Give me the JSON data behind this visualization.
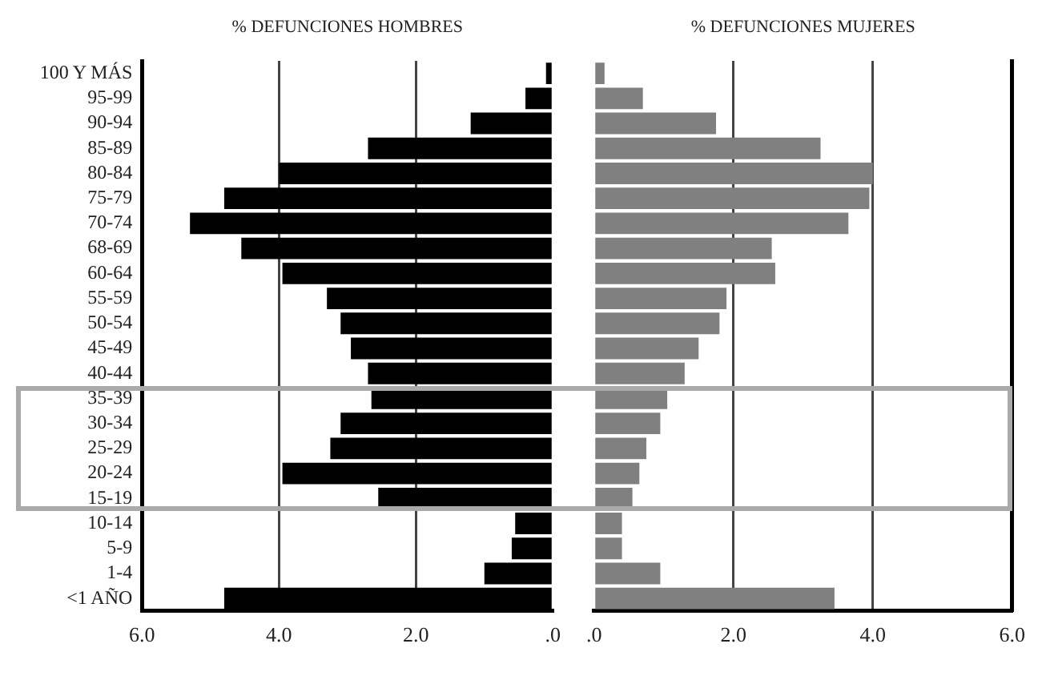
{
  "chart_data": [
    {
      "type": "bar",
      "orientation": "horizontal",
      "title": "% DEFUNCIONES HOMBRES",
      "categories": [
        "100 Y MÁS",
        "95-99",
        "90-94",
        "85-89",
        "80-84",
        "75-79",
        "70-74",
        "68-69",
        "60-64",
        "55-59",
        "50-54",
        "45-49",
        "40-44",
        "35-39",
        "30-34",
        "25-29",
        "20-24",
        "15-19",
        "10-14",
        "5-9",
        "1-4",
        "<1 AÑO"
      ],
      "series": [
        {
          "color": "#000000",
          "values": [
            0.1,
            0.4,
            1.2,
            2.7,
            4.0,
            4.8,
            5.3,
            4.55,
            3.95,
            3.3,
            3.1,
            2.95,
            2.7,
            2.65,
            3.1,
            3.25,
            3.95,
            2.55,
            0.55,
            0.6,
            1.0,
            4.8
          ]
        }
      ],
      "xlim": [
        6,
        0
      ],
      "xticks": [
        {
          "value": 6,
          "label": "6.0"
        },
        {
          "value": 4,
          "label": "4.0"
        },
        {
          "value": 2,
          "label": "2.0"
        },
        {
          "value": 0,
          "label": ".0"
        }
      ],
      "grid": "x",
      "legend": false
    },
    {
      "type": "bar",
      "orientation": "horizontal",
      "title": "% DEFUNCIONES MUJERES",
      "categories": [
        null,
        null,
        null,
        null,
        null,
        null,
        null,
        null,
        null,
        null,
        null,
        null,
        null,
        null,
        null,
        null,
        null,
        null,
        null,
        null,
        null,
        null
      ],
      "series": [
        {
          "color": "#808080",
          "values": [
            0.15,
            0.7,
            1.75,
            3.25,
            4.0,
            3.95,
            3.65,
            2.55,
            2.6,
            1.9,
            1.8,
            1.5,
            1.3,
            1.05,
            0.95,
            0.75,
            0.65,
            0.55,
            0.4,
            0.4,
            0.95,
            3.45
          ]
        }
      ],
      "xlim": [
        0,
        6
      ],
      "xticks": [
        {
          "value": 0,
          "label": ".0"
        },
        {
          "value": 2,
          "label": "2.0"
        },
        {
          "value": 4,
          "label": "4.0"
        },
        {
          "value": 6,
          "label": "6.0"
        }
      ],
      "grid": "x",
      "legend": false,
      "tick_labels": "x"
    }
  ]
}
